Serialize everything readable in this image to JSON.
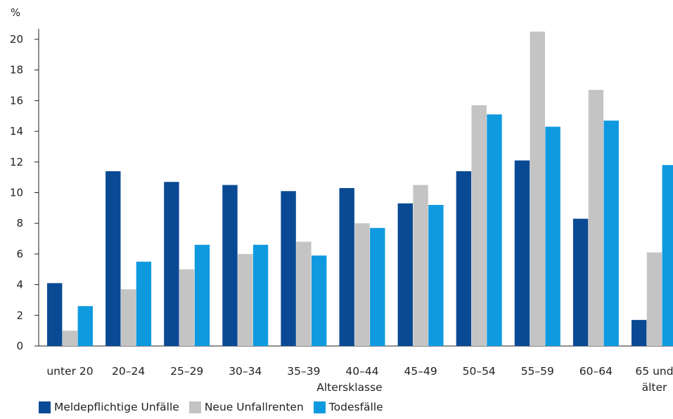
{
  "chart_data": {
    "type": "bar",
    "unit_label": "%",
    "xlabel": "Altersklasse",
    "ylabel": "",
    "ylim": [
      0,
      20.5
    ],
    "yticks": [
      0,
      2,
      4,
      6,
      8,
      10,
      12,
      14,
      16,
      18,
      20
    ],
    "grid": false,
    "legend_position": "bottom-left",
    "categories": [
      "unter 20",
      "20–24",
      "25–29",
      "30–34",
      "35–39",
      "40–44",
      "45–49",
      "50–54",
      "55–59",
      "60–64",
      "65 und älter"
    ],
    "category_lines": [
      [
        "unter 20"
      ],
      [
        "20–24"
      ],
      [
        "25–29"
      ],
      [
        "30–34"
      ],
      [
        "35–39"
      ],
      [
        "40–44"
      ],
      [
        "45–49"
      ],
      [
        "50–54"
      ],
      [
        "55–59"
      ],
      [
        "60–64"
      ],
      [
        "65 und",
        "älter"
      ]
    ],
    "series": [
      {
        "name": "Meldepflichtige Unfälle",
        "color": "#0a4a94",
        "values": [
          4.1,
          11.4,
          10.7,
          10.5,
          10.1,
          10.3,
          9.3,
          11.4,
          12.1,
          8.3,
          1.7
        ]
      },
      {
        "name": "Neue Unfallrenten",
        "color": "#c4c4c4",
        "values": [
          1.0,
          3.7,
          5.0,
          6.0,
          6.8,
          8.0,
          10.5,
          15.7,
          20.5,
          16.7,
          6.1
        ]
      },
      {
        "name": "Todesfälle",
        "color": "#0f9ae0",
        "values": [
          2.6,
          5.5,
          6.6,
          6.6,
          5.9,
          7.7,
          9.2,
          15.1,
          14.3,
          14.7,
          11.8
        ]
      }
    ]
  }
}
